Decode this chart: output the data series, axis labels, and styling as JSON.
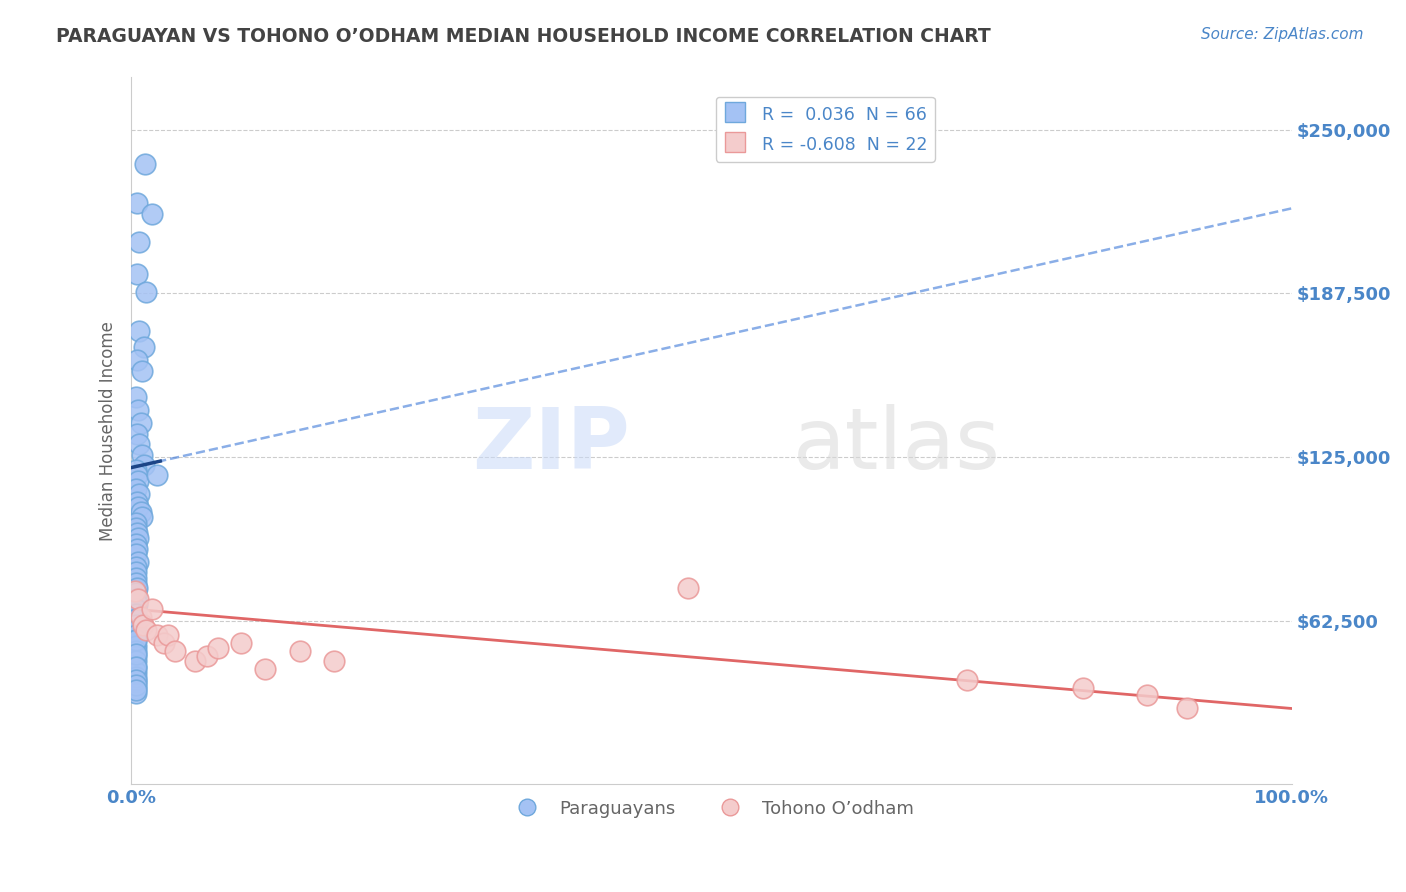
{
  "title": "PARAGUAYAN VS TOHONO O’ODHAM MEDIAN HOUSEHOLD INCOME CORRELATION CHART",
  "source": "Source: ZipAtlas.com",
  "ylabel": "Median Household Income",
  "xlim": [
    0.0,
    1.0
  ],
  "ylim": [
    0,
    270000
  ],
  "yticks": [
    62500,
    125000,
    187500,
    250000
  ],
  "ytick_labels": [
    "$62,500",
    "$125,000",
    "$187,500",
    "$250,000"
  ],
  "xtick_labels": [
    "0.0%",
    "100.0%"
  ],
  "watermark_zip": "ZIP",
  "watermark_atlas": "atlas",
  "legend_blue_label": "R =  0.036  N = 66",
  "legend_pink_label": "R = -0.608  N = 22",
  "legend_label_blue": "Paraguayans",
  "legend_label_pink": "Tohono O’odham",
  "blue_scatter_color": "#a4c2f4",
  "pink_scatter_color": "#f4cccc",
  "blue_scatter_edge": "#6fa8dc",
  "pink_scatter_edge": "#ea9999",
  "blue_line_color": "#3c78d8",
  "pink_line_color": "#e06666",
  "blue_solid_color": "#1c4587",
  "title_color": "#434343",
  "axis_label_color": "#666666",
  "tick_color": "#4a86c8",
  "grid_color": "#cccccc",
  "blue_trend_x0": 0.0,
  "blue_trend_y0": 121000,
  "blue_trend_x1": 1.0,
  "blue_trend_y1": 220000,
  "pink_trend_x0": 0.0,
  "pink_trend_y0": 67000,
  "pink_trend_x1": 1.0,
  "pink_trend_y1": 29000,
  "paraguayan_x": [
    0.005,
    0.012,
    0.007,
    0.018,
    0.005,
    0.013,
    0.007,
    0.011,
    0.005,
    0.009,
    0.004,
    0.006,
    0.008,
    0.005,
    0.007,
    0.009,
    0.011,
    0.004,
    0.005,
    0.006,
    0.004,
    0.007,
    0.005,
    0.006,
    0.008,
    0.009,
    0.004,
    0.004,
    0.005,
    0.006,
    0.004,
    0.005,
    0.004,
    0.006,
    0.004,
    0.004,
    0.004,
    0.004,
    0.005,
    0.004,
    0.004,
    0.005,
    0.004,
    0.004,
    0.004,
    0.004,
    0.004,
    0.004,
    0.004,
    0.004,
    0.004,
    0.004,
    0.004,
    0.004,
    0.004,
    0.004,
    0.004,
    0.004,
    0.004,
    0.022,
    0.004,
    0.004,
    0.004,
    0.004,
    0.004,
    0.004
  ],
  "paraguayan_y": [
    222000,
    237000,
    207000,
    218000,
    195000,
    188000,
    173000,
    167000,
    162000,
    158000,
    148000,
    143000,
    138000,
    134000,
    130000,
    126000,
    122000,
    120000,
    118000,
    116000,
    113000,
    111000,
    108000,
    106000,
    104000,
    102000,
    100000,
    98000,
    96000,
    94000,
    92000,
    90000,
    88000,
    85000,
    83000,
    81000,
    79000,
    77000,
    75000,
    73000,
    71000,
    69000,
    67000,
    65000,
    63000,
    61000,
    59000,
    57000,
    55000,
    53000,
    51000,
    49000,
    47000,
    45000,
    43000,
    41000,
    39000,
    37000,
    35000,
    118000,
    55000,
    50000,
    45000,
    40000,
    38000,
    36000
  ],
  "tohono_x": [
    0.003,
    0.006,
    0.008,
    0.01,
    0.013,
    0.018,
    0.022,
    0.028,
    0.032,
    0.038,
    0.055,
    0.065,
    0.075,
    0.095,
    0.115,
    0.145,
    0.175,
    0.48,
    0.72,
    0.82,
    0.875,
    0.91
  ],
  "tohono_y": [
    74000,
    71000,
    64000,
    61000,
    59000,
    67000,
    57000,
    54000,
    57000,
    51000,
    47000,
    49000,
    52000,
    54000,
    44000,
    51000,
    47000,
    75000,
    40000,
    37000,
    34000,
    29000
  ]
}
